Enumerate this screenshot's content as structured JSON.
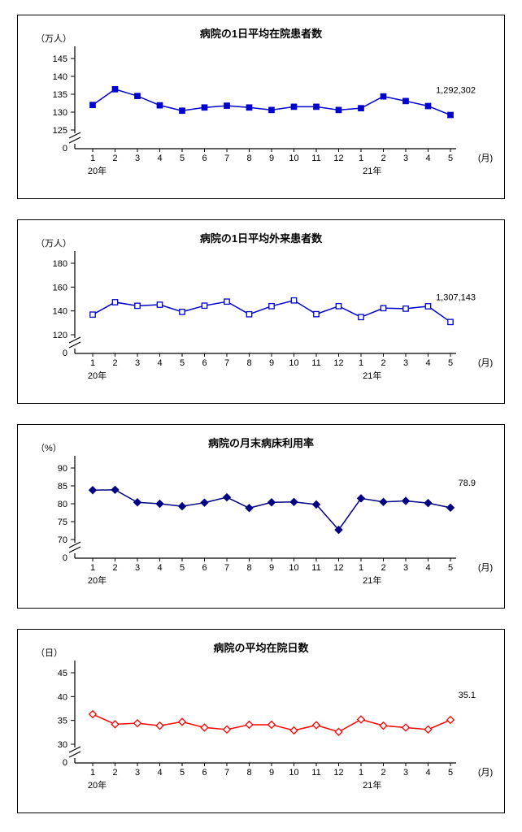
{
  "chart_data": [
    {
      "type": "line",
      "title": "病院の1日平均在院患者数",
      "unit_label": "（万人）",
      "y_base_label": "0",
      "ylim": [
        125,
        145
      ],
      "yticks": [
        145,
        140,
        135,
        130,
        125
      ],
      "x_labels": [
        "1",
        "2",
        "3",
        "4",
        "5",
        "6",
        "7",
        "8",
        "9",
        "10",
        "11",
        "12",
        "1",
        "2",
        "3",
        "4",
        "5"
      ],
      "x_axis_suffix": "(月)",
      "year_labels": [
        {
          "label": "20年",
          "index": 0.2
        },
        {
          "label": "21年",
          "index": 12.5
        }
      ],
      "last_value_label": "1,292,302",
      "series_color": "#0000cc",
      "marker": "square",
      "marker_fill": "solid",
      "values": [
        132.0,
        136.4,
        134.5,
        131.9,
        130.4,
        131.3,
        131.8,
        131.3,
        130.6,
        131.5,
        131.5,
        130.6,
        131.1,
        134.4,
        133.1,
        131.7,
        129.2
      ]
    },
    {
      "type": "line",
      "title": "病院の1日平均外来患者数",
      "unit_label": "（万人）",
      "y_base_label": "0",
      "ylim": [
        120,
        180
      ],
      "yticks": [
        180,
        160,
        140,
        120
      ],
      "x_labels": [
        "1",
        "2",
        "3",
        "4",
        "5",
        "6",
        "7",
        "8",
        "9",
        "10",
        "11",
        "12",
        "1",
        "2",
        "3",
        "4",
        "5"
      ],
      "x_axis_suffix": "(月)",
      "year_labels": [
        {
          "label": "20年",
          "index": 0.2
        },
        {
          "label": "21年",
          "index": 12.5
        }
      ],
      "last_value_label": "1,307,143",
      "series_color": "#0000cc",
      "marker": "square",
      "marker_fill": "open",
      "values": [
        136.9,
        147.3,
        144.3,
        145.2,
        139.2,
        144.4,
        147.8,
        137.2,
        144.0,
        148.8,
        137.3,
        144.0,
        134.8,
        142.3,
        141.9,
        143.9,
        130.7
      ]
    },
    {
      "type": "line",
      "title": "病院の月末病床利用率",
      "unit_label": "（%）",
      "y_base_label": "0",
      "ylim": [
        70,
        90
      ],
      "yticks": [
        90,
        85,
        80,
        75,
        70
      ],
      "x_labels": [
        "1",
        "2",
        "3",
        "4",
        "5",
        "6",
        "7",
        "8",
        "9",
        "10",
        "11",
        "12",
        "1",
        "2",
        "3",
        "4",
        "5"
      ],
      "x_axis_suffix": "(月)",
      "year_labels": [
        {
          "label": "20年",
          "index": 0.2
        },
        {
          "label": "21年",
          "index": 12.5
        }
      ],
      "last_value_label": "78.9",
      "series_color": "#000080",
      "marker": "diamond",
      "marker_fill": "solid",
      "values": [
        83.8,
        83.9,
        80.4,
        80.0,
        79.3,
        80.3,
        81.8,
        78.8,
        80.4,
        80.5,
        79.8,
        72.7,
        81.5,
        80.5,
        80.8,
        80.2,
        78.9
      ]
    },
    {
      "type": "line",
      "title": "病院の平均在院日数",
      "unit_label": "（日）",
      "y_base_label": "0",
      "ylim": [
        30,
        45
      ],
      "yticks": [
        45,
        40,
        35,
        30
      ],
      "x_labels": [
        "1",
        "2",
        "3",
        "4",
        "5",
        "6",
        "7",
        "8",
        "9",
        "10",
        "11",
        "12",
        "1",
        "2",
        "3",
        "4",
        "5"
      ],
      "x_axis_suffix": "(月)",
      "year_labels": [
        {
          "label": "20年",
          "index": 0.2
        },
        {
          "label": "21年",
          "index": 12.5
        }
      ],
      "last_value_label": "35.1",
      "series_color": "#ff0000",
      "marker": "diamond",
      "marker_fill": "open",
      "values": [
        36.3,
        34.2,
        34.4,
        33.9,
        34.7,
        33.5,
        33.1,
        34.1,
        34.1,
        32.9,
        34.0,
        32.6,
        35.2,
        33.9,
        33.5,
        33.1,
        35.1
      ]
    }
  ]
}
